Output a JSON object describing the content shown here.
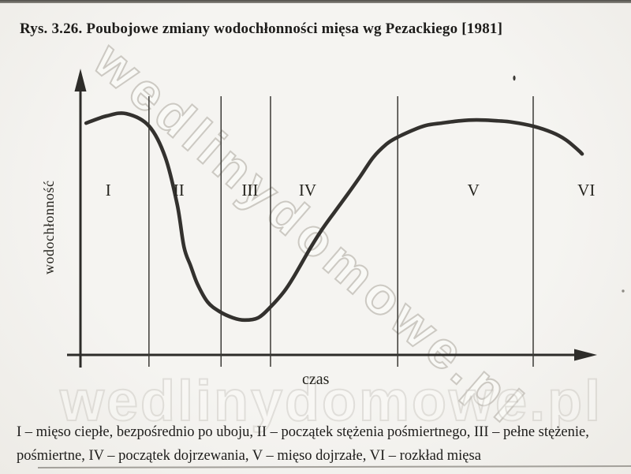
{
  "page": {
    "title": "Rys. 3.26. Poubojowe zmiany wodochłonności mięsa wg Pezackiego [1981]",
    "caption_line1": "I – mięso ciepłe, bezpośrednio po uboju, II – początek stężenia pośmiertnego, III – pełne stężenie,",
    "caption_line2": "pośmiertne, IV – początek dojrzewania, V – mięso dojrzałe, VI – rozkład mięsa"
  },
  "watermarks": {
    "diagonal_text": "wedlinydomowe.pl",
    "bottom_text": "wedlinydomowe.pl"
  },
  "chart_data": {
    "type": "line",
    "title": "Poubojowe zmiany wodochłonności mięsa wg Pezackiego [1981]",
    "xlabel": "czas",
    "ylabel": "wodochłonność",
    "x_range": [
      0,
      100
    ],
    "y_range": [
      0,
      100
    ],
    "grid": false,
    "legend": false,
    "axes_style": "arrows, no ticks, no numeric scale (qualitative plot)",
    "zone_boundaries_x": [
      13.3,
      27.3,
      36.9,
      61.6,
      87.9
    ],
    "zones": [
      {
        "label": "I",
        "x": 5.4,
        "description": "mięso ciepłe, bezpośrednio po uboju"
      },
      {
        "label": "II",
        "x": 19.1,
        "description": "początek stężenia pośmiertnego"
      },
      {
        "label": "III",
        "x": 32.9,
        "description": "pełne stężenie pośmiertne"
      },
      {
        "label": "IV",
        "x": 44.1,
        "description": "początek dojrzewania"
      },
      {
        "label": "V",
        "x": 76.3,
        "description": "mięso dojrzałe"
      },
      {
        "label": "VI",
        "x": 98.2,
        "description": "rozkład mięsa"
      }
    ],
    "series": [
      {
        "name": "wodochłonność",
        "x": [
          1.1,
          5.1,
          8.9,
          13.3,
          16.5,
          18.8,
          20.1,
          21.4,
          22.7,
          24.7,
          27.0,
          29.6,
          31.9,
          34.5,
          36.8,
          39.5,
          41.5,
          44.4,
          46.7,
          49.2,
          51.8,
          54.4,
          56.8,
          59.4,
          61.3,
          64.5,
          67.1,
          70.1,
          73.7,
          76.9,
          80.9,
          83.9,
          87.9,
          91.6,
          94.2,
          96.6,
          97.4
        ],
        "y": [
          81.2,
          83.7,
          84.5,
          80.2,
          69.1,
          52.5,
          37.8,
          31.2,
          24.9,
          18.5,
          15.2,
          13.0,
          12.2,
          13.0,
          16.6,
          22.1,
          27.6,
          36.7,
          43.4,
          49.7,
          56.1,
          62.7,
          69.1,
          73.8,
          76.0,
          78.7,
          80.4,
          81.2,
          82.0,
          82.3,
          82.0,
          81.5,
          80.1,
          77.9,
          75.4,
          71.8,
          70.4
        ]
      }
    ]
  }
}
